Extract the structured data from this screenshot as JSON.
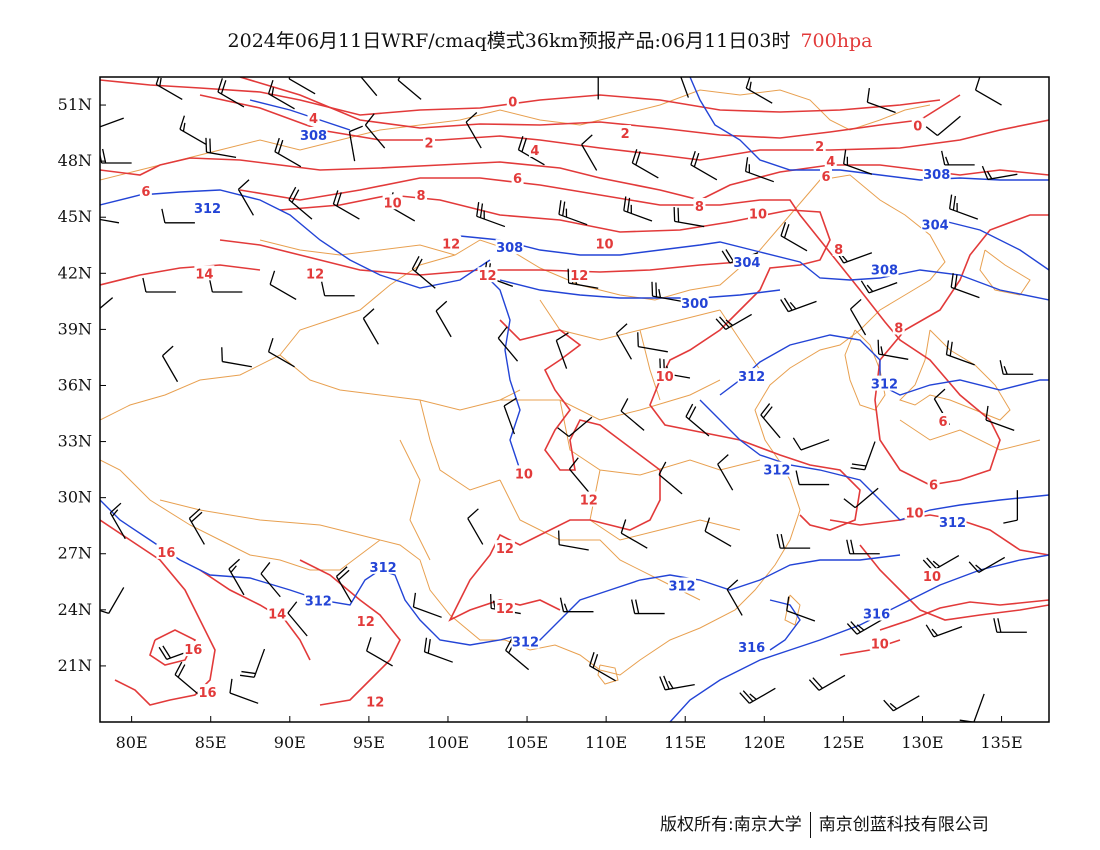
{
  "title": {
    "main": "2024年06月11日WRF/cmaq模式36km预报产品:06月11日03时",
    "level": "700hpa"
  },
  "footer": {
    "copyright": "版权所有:南京大学",
    "company": "南京创蓝科技有限公司"
  },
  "map": {
    "lon_ticks": [
      "80E",
      "85E",
      "90E",
      "95E",
      "100E",
      "105E",
      "110E",
      "115E",
      "120E",
      "125E",
      "130E",
      "135E"
    ],
    "lat_ticks": [
      "51N",
      "48N",
      "45N",
      "42N",
      "39N",
      "36N",
      "33N",
      "30N",
      "27N",
      "24N",
      "21N"
    ],
    "colors": {
      "temperature": "#e23a3a",
      "geopotential": "#2344d6",
      "boundaries": "#e8a050",
      "wind": "#000000"
    },
    "temperature_labels": [
      {
        "t": "4",
        "lon": 91.5,
        "lat": 50.3
      },
      {
        "t": "2",
        "lon": 98.8,
        "lat": 49.0
      },
      {
        "t": "0",
        "lon": 104.1,
        "lat": 51.2
      },
      {
        "t": "4",
        "lon": 105.5,
        "lat": 48.6
      },
      {
        "t": "2",
        "lon": 111.2,
        "lat": 49.5
      },
      {
        "t": "6",
        "lon": 104.4,
        "lat": 47.1
      },
      {
        "t": "8",
        "lon": 98.3,
        "lat": 46.2
      },
      {
        "t": "10",
        "lon": 96.5,
        "lat": 45.8
      },
      {
        "t": "12",
        "lon": 100.2,
        "lat": 43.6
      },
      {
        "t": "12",
        "lon": 91.6,
        "lat": 42.0
      },
      {
        "t": "12",
        "lon": 102.5,
        "lat": 41.9
      },
      {
        "t": "12",
        "lon": 108.3,
        "lat": 41.9
      },
      {
        "t": "10",
        "lon": 109.9,
        "lat": 43.6
      },
      {
        "t": "8",
        "lon": 115.9,
        "lat": 45.6
      },
      {
        "t": "6",
        "lon": 80.9,
        "lat": 46.4
      },
      {
        "t": "14",
        "lon": 84.6,
        "lat": 42.0
      },
      {
        "t": "2",
        "lon": 123.5,
        "lat": 48.8
      },
      {
        "t": "4",
        "lon": 124.2,
        "lat": 48.0
      },
      {
        "t": "6",
        "lon": 123.9,
        "lat": 47.2
      },
      {
        "t": "10",
        "lon": 119.6,
        "lat": 45.2
      },
      {
        "t": "8",
        "lon": 124.7,
        "lat": 43.3
      },
      {
        "t": "0",
        "lon": 129.7,
        "lat": 49.9
      },
      {
        "t": "8",
        "lon": 128.5,
        "lat": 39.1
      },
      {
        "t": "6",
        "lon": 131.3,
        "lat": 34.1
      },
      {
        "t": "6",
        "lon": 130.7,
        "lat": 30.7
      },
      {
        "t": "10",
        "lon": 113.7,
        "lat": 36.5
      },
      {
        "t": "10",
        "lon": 104.8,
        "lat": 31.3
      },
      {
        "t": "12",
        "lon": 108.9,
        "lat": 29.9
      },
      {
        "t": "12",
        "lon": 103.6,
        "lat": 27.3
      },
      {
        "t": "12",
        "lon": 103.6,
        "lat": 24.1
      },
      {
        "t": "12",
        "lon": 94.8,
        "lat": 23.4
      },
      {
        "t": "14",
        "lon": 89.2,
        "lat": 23.8
      },
      {
        "t": "16",
        "lon": 82.2,
        "lat": 27.1
      },
      {
        "t": "16",
        "lon": 83.9,
        "lat": 21.9
      },
      {
        "t": "16",
        "lon": 84.8,
        "lat": 19.6
      },
      {
        "t": "12",
        "lon": 95.4,
        "lat": 19.1
      },
      {
        "t": "10",
        "lon": 129.5,
        "lat": 29.2
      },
      {
        "t": "10",
        "lon": 130.6,
        "lat": 25.8
      },
      {
        "t": "10",
        "lon": 127.3,
        "lat": 22.2
      }
    ],
    "height_labels": [
      {
        "t": "308",
        "lon": 91.5,
        "lat": 49.4
      },
      {
        "t": "312",
        "lon": 84.8,
        "lat": 45.5
      },
      {
        "t": "308",
        "lon": 103.9,
        "lat": 43.4
      },
      {
        "t": "304",
        "lon": 118.9,
        "lat": 42.6
      },
      {
        "t": "300",
        "lon": 115.6,
        "lat": 40.4
      },
      {
        "t": "308",
        "lon": 130.9,
        "lat": 47.3
      },
      {
        "t": "304",
        "lon": 130.8,
        "lat": 44.6
      },
      {
        "t": "308",
        "lon": 127.6,
        "lat": 42.2
      },
      {
        "t": "312",
        "lon": 119.2,
        "lat": 36.5
      },
      {
        "t": "312",
        "lon": 127.6,
        "lat": 36.1
      },
      {
        "t": "312",
        "lon": 120.8,
        "lat": 31.5
      },
      {
        "t": "312",
        "lon": 131.9,
        "lat": 28.7
      },
      {
        "t": "312",
        "lon": 95.9,
        "lat": 26.3
      },
      {
        "t": "312",
        "lon": 91.8,
        "lat": 24.5
      },
      {
        "t": "312",
        "lon": 114.8,
        "lat": 25.3
      },
      {
        "t": "312",
        "lon": 104.9,
        "lat": 22.3
      },
      {
        "t": "316",
        "lon": 119.2,
        "lat": 22.0
      },
      {
        "t": "316",
        "lon": 127.1,
        "lat": 23.8
      }
    ],
    "wind_barbs": [
      {
        "lon": 79.5,
        "lat": 50.3,
        "dir": 250,
        "spd": 10
      },
      {
        "lon": 83.2,
        "lat": 51.3,
        "dir": 300,
        "spd": 15
      },
      {
        "lon": 87.1,
        "lat": 50.9,
        "dir": 300,
        "spd": 20
      },
      {
        "lon": 90.3,
        "lat": 50.8,
        "dir": 300,
        "spd": 15
      },
      {
        "lon": 91.6,
        "lat": 51.6,
        "dir": 300,
        "spd": 10
      },
      {
        "lon": 95.5,
        "lat": 51.5,
        "dir": 320,
        "spd": 10
      },
      {
        "lon": 98.3,
        "lat": 51.3,
        "dir": 310,
        "spd": 10
      },
      {
        "lon": 109.5,
        "lat": 51.3,
        "dir": 0,
        "spd": 10
      },
      {
        "lon": 115.2,
        "lat": 51.4,
        "dir": 340,
        "spd": 10
      },
      {
        "lon": 120.5,
        "lat": 51.1,
        "dir": 300,
        "spd": 15
      },
      {
        "lon": 128.3,
        "lat": 50.6,
        "dir": 290,
        "spd": 10
      },
      {
        "lon": 132.4,
        "lat": 50.4,
        "dir": 230,
        "spd": 10
      },
      {
        "lon": 135.0,
        "lat": 51.0,
        "dir": 300,
        "spd": 10
      },
      {
        "lon": 80.0,
        "lat": 47.9,
        "dir": 270,
        "spd": 20
      },
      {
        "lon": 84.7,
        "lat": 48.9,
        "dir": 300,
        "spd": 15
      },
      {
        "lon": 86.6,
        "lat": 48.2,
        "dir": 280,
        "spd": 20
      },
      {
        "lon": 90.7,
        "lat": 47.7,
        "dir": 300,
        "spd": 20
      },
      {
        "lon": 94.1,
        "lat": 48.0,
        "dir": 350,
        "spd": 10
      },
      {
        "lon": 96.0,
        "lat": 48.7,
        "dir": 320,
        "spd": 10
      },
      {
        "lon": 102.1,
        "lat": 48.7,
        "dir": 330,
        "spd": 10
      },
      {
        "lon": 106.1,
        "lat": 47.8,
        "dir": 300,
        "spd": 20
      },
      {
        "lon": 109.4,
        "lat": 47.5,
        "dir": 330,
        "spd": 10
      },
      {
        "lon": 113.3,
        "lat": 47.1,
        "dir": 300,
        "spd": 20
      },
      {
        "lon": 117.0,
        "lat": 47.0,
        "dir": 300,
        "spd": 20
      },
      {
        "lon": 120.6,
        "lat": 46.9,
        "dir": 290,
        "spd": 15
      },
      {
        "lon": 126.8,
        "lat": 47.3,
        "dir": 290,
        "spd": 15
      },
      {
        "lon": 133.3,
        "lat": 47.8,
        "dir": 270,
        "spd": 15
      },
      {
        "lon": 136.0,
        "lat": 47.3,
        "dir": 260,
        "spd": 15
      },
      {
        "lon": 79.2,
        "lat": 44.7,
        "dir": 280,
        "spd": 15
      },
      {
        "lon": 84.0,
        "lat": 44.7,
        "dir": 270,
        "spd": 10
      },
      {
        "lon": 87.7,
        "lat": 45.1,
        "dir": 330,
        "spd": 10
      },
      {
        "lon": 91.4,
        "lat": 44.9,
        "dir": 310,
        "spd": 20
      },
      {
        "lon": 94.4,
        "lat": 44.9,
        "dir": 300,
        "spd": 20
      },
      {
        "lon": 97.9,
        "lat": 44.8,
        "dir": 300,
        "spd": 15
      },
      {
        "lon": 103.6,
        "lat": 44.5,
        "dir": 290,
        "spd": 25
      },
      {
        "lon": 108.8,
        "lat": 44.6,
        "dir": 290,
        "spd": 25
      },
      {
        "lon": 112.9,
        "lat": 44.8,
        "dir": 290,
        "spd": 25
      },
      {
        "lon": 116.2,
        "lat": 44.5,
        "dir": 280,
        "spd": 20
      },
      {
        "lon": 119.6,
        "lat": 43.1,
        "dir": 250,
        "spd": 20
      },
      {
        "lon": 122.7,
        "lat": 43.2,
        "dir": 300,
        "spd": 20
      },
      {
        "lon": 126.8,
        "lat": 43.1,
        "dir": 250,
        "spd": 15
      },
      {
        "lon": 133.5,
        "lat": 44.9,
        "dir": 290,
        "spd": 25
      },
      {
        "lon": 78.8,
        "lat": 40.7,
        "dir": 230,
        "spd": 10
      },
      {
        "lon": 82.8,
        "lat": 41.0,
        "dir": 270,
        "spd": 10
      },
      {
        "lon": 87.0,
        "lat": 41.0,
        "dir": 270,
        "spd": 10
      },
      {
        "lon": 90.4,
        "lat": 40.6,
        "dir": 300,
        "spd": 10
      },
      {
        "lon": 94.1,
        "lat": 40.8,
        "dir": 270,
        "spd": 10
      },
      {
        "lon": 99.2,
        "lat": 41.2,
        "dir": 310,
        "spd": 20
      },
      {
        "lon": 104.1,
        "lat": 41.3,
        "dir": 290,
        "spd": 25
      },
      {
        "lon": 109.5,
        "lat": 41.2,
        "dir": 280,
        "spd": 25
      },
      {
        "lon": 114.8,
        "lat": 40.5,
        "dir": 280,
        "spd": 25
      },
      {
        "lon": 119.2,
        "lat": 39.8,
        "dir": 240,
        "spd": 25
      },
      {
        "lon": 123.3,
        "lat": 40.5,
        "dir": 250,
        "spd": 25
      },
      {
        "lon": 128.4,
        "lat": 41.5,
        "dir": 250,
        "spd": 15
      },
      {
        "lon": 133.6,
        "lat": 40.7,
        "dir": 290,
        "spd": 20
      },
      {
        "lon": 95.6,
        "lat": 38.2,
        "dir": 330,
        "spd": 10
      },
      {
        "lon": 100.2,
        "lat": 38.6,
        "dir": 330,
        "spd": 10
      },
      {
        "lon": 104.4,
        "lat": 37.3,
        "dir": 320,
        "spd": 10
      },
      {
        "lon": 107.5,
        "lat": 36.9,
        "dir": 340,
        "spd": 10
      },
      {
        "lon": 111.6,
        "lat": 37.4,
        "dir": 330,
        "spd": 10
      },
      {
        "lon": 113.9,
        "lat": 37.8,
        "dir": 280,
        "spd": 10
      },
      {
        "lon": 115.3,
        "lat": 36.4,
        "dir": 280,
        "spd": 25
      },
      {
        "lon": 126.4,
        "lat": 38.7,
        "dir": 330,
        "spd": 10
      },
      {
        "lon": 129.1,
        "lat": 37.4,
        "dir": 280,
        "spd": 15
      },
      {
        "lon": 133.3,
        "lat": 37.1,
        "dir": 290,
        "spd": 20
      },
      {
        "lon": 137.0,
        "lat": 36.6,
        "dir": 270,
        "spd": 15
      },
      {
        "lon": 82.9,
        "lat": 36.2,
        "dir": 330,
        "spd": 10
      },
      {
        "lon": 87.6,
        "lat": 37.0,
        "dir": 280,
        "spd": 10
      },
      {
        "lon": 90.3,
        "lat": 37.0,
        "dir": 300,
        "spd": 10
      },
      {
        "lon": 104.2,
        "lat": 33.4,
        "dir": 340,
        "spd": 10
      },
      {
        "lon": 109.1,
        "lat": 34.3,
        "dir": 230,
        "spd": 10
      },
      {
        "lon": 112.4,
        "lat": 33.6,
        "dir": 310,
        "spd": 10
      },
      {
        "lon": 116.5,
        "lat": 33.3,
        "dir": 310,
        "spd": 20
      },
      {
        "lon": 121.0,
        "lat": 33.2,
        "dir": 320,
        "spd": 20
      },
      {
        "lon": 124.1,
        "lat": 33.1,
        "dir": 250,
        "spd": 10
      },
      {
        "lon": 127.0,
        "lat": 33.0,
        "dir": 200,
        "spd": 20
      },
      {
        "lon": 131.7,
        "lat": 33.9,
        "dir": 330,
        "spd": 10
      },
      {
        "lon": 135.8,
        "lat": 33.6,
        "dir": 290,
        "spd": 10
      },
      {
        "lon": 108.9,
        "lat": 30.3,
        "dir": 320,
        "spd": 10
      },
      {
        "lon": 114.8,
        "lat": 30.2,
        "dir": 310,
        "spd": 10
      },
      {
        "lon": 118.0,
        "lat": 30.4,
        "dir": 330,
        "spd": 10
      },
      {
        "lon": 124.1,
        "lat": 30.7,
        "dir": 270,
        "spd": 10
      },
      {
        "lon": 127.2,
        "lat": 30.5,
        "dir": 230,
        "spd": 10
      },
      {
        "lon": 136.0,
        "lat": 30.4,
        "dir": 180,
        "spd": 10
      },
      {
        "lon": 102.2,
        "lat": 27.5,
        "dir": 330,
        "spd": 10
      },
      {
        "lon": 108.9,
        "lat": 27.2,
        "dir": 280,
        "spd": 10
      },
      {
        "lon": 112.6,
        "lat": 27.3,
        "dir": 300,
        "spd": 10
      },
      {
        "lon": 117.9,
        "lat": 27.4,
        "dir": 300,
        "spd": 10
      },
      {
        "lon": 122.9,
        "lat": 27.3,
        "dir": 270,
        "spd": 20
      },
      {
        "lon": 127.3,
        "lat": 27.0,
        "dir": 270,
        "spd": 20
      },
      {
        "lon": 132.3,
        "lat": 26.9,
        "dir": 240,
        "spd": 25
      },
      {
        "lon": 135.2,
        "lat": 26.8,
        "dir": 240,
        "spd": 15
      },
      {
        "lon": 79.6,
        "lat": 27.8,
        "dir": 330,
        "spd": 15
      },
      {
        "lon": 84.6,
        "lat": 27.5,
        "dir": 330,
        "spd": 20
      },
      {
        "lon": 87.1,
        "lat": 24.8,
        "dir": 330,
        "spd": 15
      },
      {
        "lon": 89.4,
        "lat": 24.7,
        "dir": 320,
        "spd": 10
      },
      {
        "lon": 93.9,
        "lat": 24.4,
        "dir": 330,
        "spd": 20
      },
      {
        "lon": 99.6,
        "lat": 23.6,
        "dir": 290,
        "spd": 10
      },
      {
        "lon": 104.6,
        "lat": 23.8,
        "dir": 280,
        "spd": 15
      },
      {
        "lon": 109.2,
        "lat": 23.9,
        "dir": 270,
        "spd": 15
      },
      {
        "lon": 113.7,
        "lat": 23.8,
        "dir": 270,
        "spd": 20
      },
      {
        "lon": 118.6,
        "lat": 23.7,
        "dir": 330,
        "spd": 10
      },
      {
        "lon": 123.2,
        "lat": 23.4,
        "dir": 290,
        "spd": 10
      },
      {
        "lon": 127.5,
        "lat": 23.5,
        "dir": 240,
        "spd": 25
      },
      {
        "lon": 132.5,
        "lat": 23.1,
        "dir": 250,
        "spd": 15
      },
      {
        "lon": 136.6,
        "lat": 22.8,
        "dir": 270,
        "spd": 20
      },
      {
        "lon": 79.5,
        "lat": 25.2,
        "dir": 210,
        "spd": 10
      },
      {
        "lon": 84.0,
        "lat": 21.9,
        "dir": 250,
        "spd": 20
      },
      {
        "lon": 88.4,
        "lat": 21.9,
        "dir": 200,
        "spd": 20
      },
      {
        "lon": 91.1,
        "lat": 22.6,
        "dir": 320,
        "spd": 10
      },
      {
        "lon": 96.5,
        "lat": 21.0,
        "dir": 300,
        "spd": 10
      },
      {
        "lon": 100.3,
        "lat": 21.2,
        "dir": 290,
        "spd": 20
      },
      {
        "lon": 105.1,
        "lat": 20.8,
        "dir": 310,
        "spd": 20
      },
      {
        "lon": 110.6,
        "lat": 20.2,
        "dir": 300,
        "spd": 20
      },
      {
        "lon": 115.6,
        "lat": 20.0,
        "dir": 260,
        "spd": 25
      },
      {
        "lon": 120.7,
        "lat": 19.8,
        "dir": 240,
        "spd": 25
      },
      {
        "lon": 125.1,
        "lat": 20.5,
        "dir": 240,
        "spd": 20
      },
      {
        "lon": 129.8,
        "lat": 19.4,
        "dir": 240,
        "spd": 15
      },
      {
        "lon": 133.9,
        "lat": 19.5,
        "dir": 200,
        "spd": 10
      },
      {
        "lon": 84.2,
        "lat": 19.5,
        "dir": 310,
        "spd": 20
      },
      {
        "lon": 88.0,
        "lat": 19.0,
        "dir": 290,
        "spd": 10
      }
    ]
  }
}
